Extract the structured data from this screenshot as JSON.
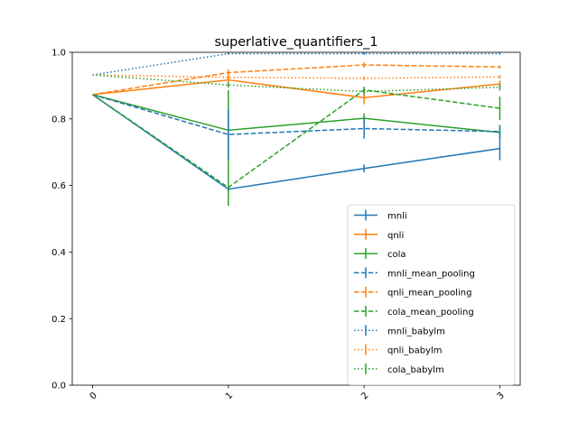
{
  "chart_data": {
    "type": "line",
    "title": "superlative_quantifiers_1",
    "xlabel": "",
    "ylabel": "",
    "x": [
      0,
      1,
      2,
      3
    ],
    "x_tick_labels": [
      "0",
      "1",
      "2",
      "3"
    ],
    "y_ticks": [
      0.0,
      0.2,
      0.4,
      0.6,
      0.8,
      1.0
    ],
    "y_tick_labels": [
      "0.0",
      "0.2",
      "0.4",
      "0.6",
      "0.8",
      "1.0"
    ],
    "xlim": [
      -0.15,
      3.15
    ],
    "ylim": [
      0.0,
      1.0
    ],
    "grid": false,
    "legend_position": "lower-right",
    "error_bars": true,
    "series": [
      {
        "name": "mnli",
        "color": "#1f77b4",
        "linestyle": "solid",
        "values": [
          0.873,
          0.589,
          0.651,
          0.711
        ],
        "errors": [
          0.0,
          0.01,
          0.012,
          0.035
        ]
      },
      {
        "name": "qnli",
        "color": "#ff7f0e",
        "linestyle": "solid",
        "values": [
          0.873,
          0.917,
          0.864,
          0.905
        ],
        "errors": [
          0.0,
          0.015,
          0.02,
          0.01
        ]
      },
      {
        "name": "cola",
        "color": "#2ca02c",
        "linestyle": "solid",
        "values": [
          0.873,
          0.766,
          0.802,
          0.759
        ],
        "errors": [
          0.0,
          0.12,
          0.015,
          0.015
        ]
      },
      {
        "name": "mnli_mean_pooling",
        "color": "#1f77b4",
        "linestyle": "dashed",
        "values": [
          0.873,
          0.753,
          0.771,
          0.762
        ],
        "errors": [
          0.0,
          0.075,
          0.03,
          0.02
        ]
      },
      {
        "name": "qnli_mean_pooling",
        "color": "#ff7f0e",
        "linestyle": "dashed",
        "values": [
          0.873,
          0.939,
          0.962,
          0.956
        ],
        "errors": [
          0.0,
          0.01,
          0.008,
          0.005
        ]
      },
      {
        "name": "cola_mean_pooling",
        "color": "#2ca02c",
        "linestyle": "dashed",
        "values": [
          0.873,
          0.594,
          0.887,
          0.832
        ],
        "errors": [
          0.0,
          0.055,
          0.01,
          0.035
        ]
      },
      {
        "name": "mnli_babylm",
        "color": "#1f77b4",
        "linestyle": "dotted",
        "values": [
          0.932,
          0.996,
          0.996,
          0.996
        ],
        "errors": [
          0.0,
          0.003,
          0.003,
          0.003
        ]
      },
      {
        "name": "qnli_babylm",
        "color": "#ff7f0e",
        "linestyle": "dotted",
        "values": [
          0.932,
          0.925,
          0.922,
          0.926
        ],
        "errors": [
          0.0,
          0.005,
          0.005,
          0.005
        ]
      },
      {
        "name": "cola_babylm",
        "color": "#2ca02c",
        "linestyle": "dotted",
        "values": [
          0.932,
          0.902,
          0.882,
          0.895
        ],
        "errors": [
          0.0,
          0.008,
          0.01,
          0.01
        ]
      }
    ]
  }
}
